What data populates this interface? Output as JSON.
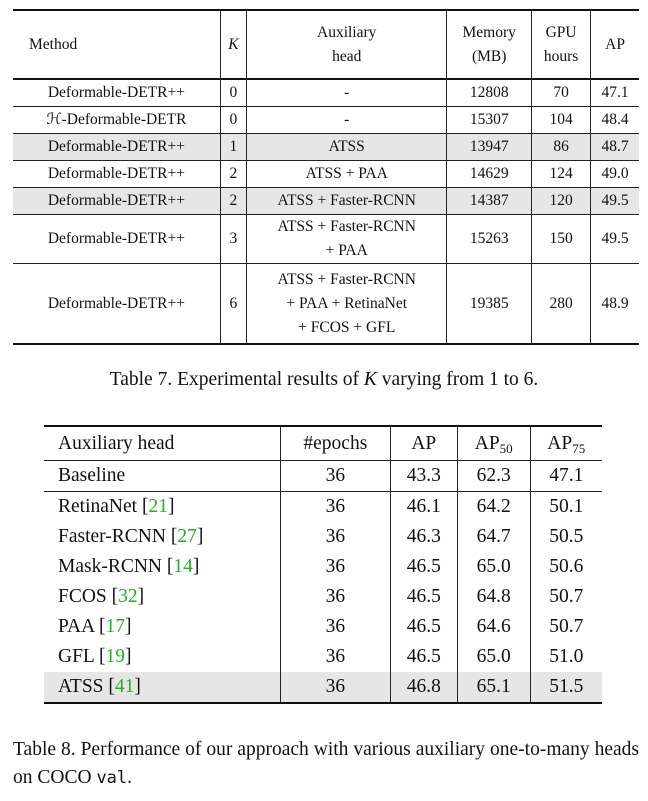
{
  "table7": {
    "headers": {
      "method": "Method",
      "k": "K",
      "aux_line1": "Auxiliary",
      "aux_line2": "head",
      "mem_line1": "Memory",
      "mem_line2": "(MB)",
      "gpu_line1": "GPU",
      "gpu_line2": "hours",
      "ap": "AP"
    },
    "rows": [
      {
        "method": "Deformable-DETR++",
        "k": "0",
        "aux1": "-",
        "aux2": "",
        "aux3": "",
        "memory": "12808",
        "gpu": "70",
        "ap": "47.1"
      },
      {
        "method": "ℋ-Deformable-DETR",
        "k": "0",
        "aux1": "-",
        "aux2": "",
        "aux3": "",
        "memory": "15307",
        "gpu": "104",
        "ap": "48.4"
      },
      {
        "method": "Deformable-DETR++",
        "k": "1",
        "aux1": "ATSS",
        "aux2": "",
        "aux3": "",
        "memory": "13947",
        "gpu": "86",
        "ap": "48.7"
      },
      {
        "method": "Deformable-DETR++",
        "k": "2",
        "aux1": "ATSS + PAA",
        "aux2": "",
        "aux3": "",
        "memory": "14629",
        "gpu": "124",
        "ap": "49.0"
      },
      {
        "method": "Deformable-DETR++",
        "k": "2",
        "aux1": "ATSS + Faster-RCNN",
        "aux2": "",
        "aux3": "",
        "memory": "14387",
        "gpu": "120",
        "ap": "49.5"
      },
      {
        "method": "Deformable-DETR++",
        "k": "3",
        "aux1": "ATSS + Faster-RCNN",
        "aux2": "+ PAA",
        "aux3": "",
        "memory": "15263",
        "gpu": "150",
        "ap": "49.5"
      },
      {
        "method": "Deformable-DETR++",
        "k": "6",
        "aux1": "ATSS + Faster-RCNN",
        "aux2": "+ PAA + RetinaNet",
        "aux3": "+ FCOS + GFL",
        "memory": "19385",
        "gpu": "280",
        "ap": "48.9"
      }
    ],
    "caption_prefix": "Table 7. Experimental results of ",
    "caption_var": "K",
    "caption_suffix": " varying from 1 to 6."
  },
  "table8": {
    "headers": {
      "aux_head": "Auxiliary head",
      "epochs": "#epochs",
      "ap": "AP",
      "ap50_base": "AP",
      "ap50_sub": "50",
      "ap75_base": "AP",
      "ap75_sub": "75"
    },
    "rows": [
      {
        "name": "Baseline",
        "ref": "",
        "epochs": "36",
        "ap": "43.3",
        "ap50": "62.3",
        "ap75": "47.1"
      },
      {
        "name": "RetinaNet ",
        "ref": "21",
        "epochs": "36",
        "ap": "46.1",
        "ap50": "64.2",
        "ap75": "50.1"
      },
      {
        "name": "Faster-RCNN ",
        "ref": "27",
        "epochs": "36",
        "ap": "46.3",
        "ap50": "64.7",
        "ap75": "50.5"
      },
      {
        "name": "Mask-RCNN ",
        "ref": "14",
        "epochs": "36",
        "ap": "46.5",
        "ap50": "65.0",
        "ap75": "50.6"
      },
      {
        "name": "FCOS ",
        "ref": "32",
        "epochs": "36",
        "ap": "46.5",
        "ap50": "64.8",
        "ap75": "50.7"
      },
      {
        "name": "PAA ",
        "ref": "17",
        "epochs": "36",
        "ap": "46.5",
        "ap50": "64.6",
        "ap75": "50.7"
      },
      {
        "name": "GFL ",
        "ref": "19",
        "epochs": "36",
        "ap": "46.5",
        "ap50": "65.0",
        "ap75": "51.0"
      },
      {
        "name": "ATSS ",
        "ref": "41",
        "epochs": "36",
        "ap": "46.8",
        "ap50": "65.1",
        "ap75": "51.5"
      }
    ],
    "caption_main": "Table 8. Performance of our approach with various auxiliary one-to-many heads on COCO ",
    "caption_code": "val",
    "caption_end": "."
  },
  "colors": {
    "shade": "#e6e6e6",
    "reference_link": "#1fb21f"
  }
}
